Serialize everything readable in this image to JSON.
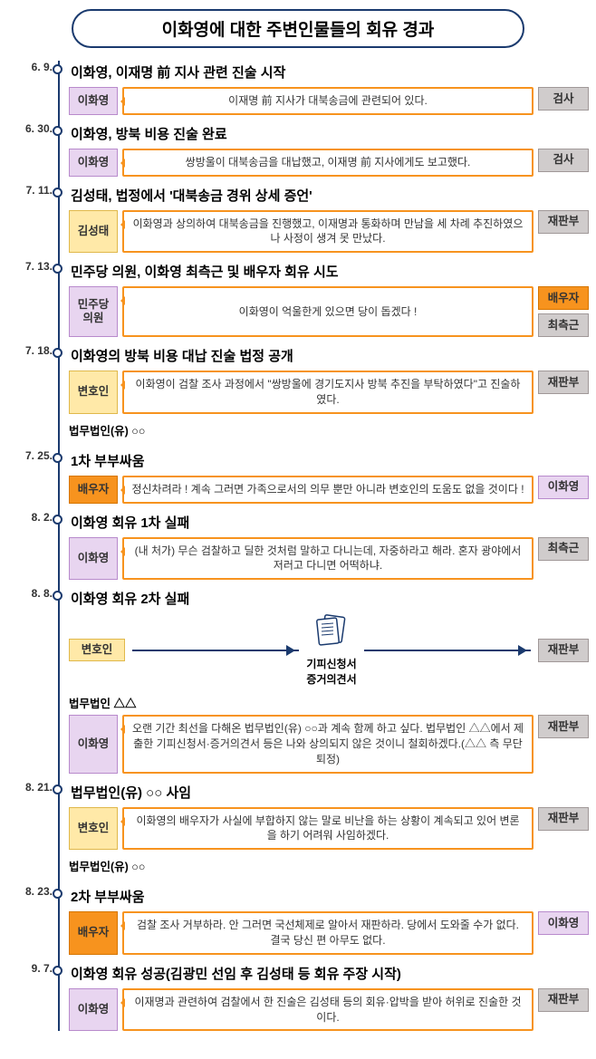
{
  "title": "이화영에 대한 주변인물들의 회유 경과",
  "colors": {
    "purple": "#e8d5f0",
    "yellow": "#ffe9a8",
    "orange": "#f7931e",
    "gray": "#d0cccc",
    "navy": "#1a3a6e"
  },
  "events": [
    {
      "date": "6. 9.",
      "head": "이화영, 이재명 前 지사 관련 진술 시작",
      "bubbles": [
        {
          "speaker": "이화영",
          "speakerStyle": "purple",
          "text": "이재명 前 지사가 대북송금에 관련되어 있다.",
          "side": [
            {
              "label": "검사",
              "style": "gray"
            }
          ]
        }
      ]
    },
    {
      "date": "6. 30.",
      "head": "이화영, 방북 비용 진술 완료",
      "bubbles": [
        {
          "speaker": "이화영",
          "speakerStyle": "purple",
          "text": "쌍방울이 대북송금을 대납했고, 이재명 前 지사에게도 보고했다.",
          "side": [
            {
              "label": "검사",
              "style": "gray"
            }
          ]
        }
      ]
    },
    {
      "date": "7. 11.",
      "head": "김성태, 법정에서 '대북송금 경위 상세 증언'",
      "bubbles": [
        {
          "speaker": "김성태",
          "speakerStyle": "yellow",
          "text": "이화영과 상의하여 대북송금을 진행했고, 이재명과 통화하며 만남을 세 차례 추진하였으나 사정이 생겨 못 만났다.",
          "side": [
            {
              "label": "재판부",
              "style": "gray"
            }
          ]
        }
      ]
    },
    {
      "date": "7. 13.",
      "head": "민주당 의원, 이화영 최측근 및 배우자 회유 시도",
      "bubbles": [
        {
          "speaker": "민주당\n의원",
          "speakerStyle": "purple",
          "text": "이화영이 억울한게 있으면 당이 돕겠다 !",
          "side": [
            {
              "label": "배우자",
              "style": "orange"
            },
            {
              "label": "최측근",
              "style": "gray"
            }
          ]
        }
      ]
    },
    {
      "date": "7. 18.",
      "head": "이화영의 방북 비용 대납 진술 법정 공개",
      "bubbles": [
        {
          "speaker": "변호인",
          "speakerStyle": "yellow",
          "text": "이화영이 검찰 조사 과정에서 \"쌍방울에 경기도지사 방북 추진을 부탁하였다\"고 진술하였다.",
          "side": [
            {
              "label": "재판부",
              "style": "gray"
            }
          ]
        }
      ],
      "sub": "법무법인(유) ○○"
    },
    {
      "date": "7. 25.",
      "head": "1차 부부싸움",
      "bubbles": [
        {
          "speaker": "배우자",
          "speakerStyle": "orange",
          "text": "정신차려라 ! 계속 그러면 가족으로서의 의무 뿐만 아니라 변호인의 도움도 없을 것이다 !",
          "side": [
            {
              "label": "이화영",
              "style": "purple"
            }
          ]
        }
      ]
    },
    {
      "date": "8. 2.",
      "head": "이화영 회유 1차 실패",
      "bubbles": [
        {
          "speaker": "이화영",
          "speakerStyle": "purple",
          "text": "(내 처가) 무슨 검찰하고 딜한 것처럼 말하고 다니는데, 자중하라고 해라. 혼자 광야에서 저러고 다니면 어떡하냐.",
          "side": [
            {
              "label": "최측근",
              "style": "gray"
            }
          ]
        }
      ]
    },
    {
      "date": "8. 8.",
      "head": "이화영 회유 2차 실패",
      "doc": {
        "leftLabel": "변호인",
        "leftStyle": "yellow",
        "leftSub": "법무법인 △△",
        "docLabel": "기피신청서\n증거의견서",
        "side": [
          {
            "label": "재판부",
            "style": "gray"
          }
        ]
      },
      "bubbles": [
        {
          "speaker": "이화영",
          "speakerStyle": "purple",
          "text": "오랜 기간 최선을 다해온 법무법인(유) ○○과 계속 함께 하고 싶다. 법무법인 △△에서 제출한 기피신청서·증거의견서 등은 나와 상의되지 않은 것이니 철회하겠다.(△△ 측 무단 퇴정)",
          "side": [
            {
              "label": "재판부",
              "style": "gray"
            }
          ]
        }
      ]
    },
    {
      "date": "8. 21.",
      "head": "법무법인(유) ○○ 사임",
      "bubbles": [
        {
          "speaker": "변호인",
          "speakerStyle": "yellow",
          "text": "이화영의 배우자가 사실에 부합하지 않는 말로 비난을 하는 상황이 계속되고 있어 변론을 하기 어려워 사임하겠다.",
          "side": [
            {
              "label": "재판부",
              "style": "gray"
            }
          ]
        }
      ],
      "sub": "법무법인(유) ○○"
    },
    {
      "date": "8. 23.",
      "head": "2차 부부싸움",
      "bubbles": [
        {
          "speaker": "배우자",
          "speakerStyle": "orange",
          "text": "검찰 조사 거부하라. 안 그러면 국선체제로 알아서 재판하라. 당에서 도와줄 수가 없다. 결국 당신 편 아무도 없다.",
          "side": [
            {
              "label": "이화영",
              "style": "purple"
            }
          ]
        }
      ]
    },
    {
      "date": "9. 7.",
      "head": "이화영 회유 성공(김광민 선임 후 김성태 등 회유 주장 시작)",
      "bubbles": [
        {
          "speaker": "이화영",
          "speakerStyle": "purple",
          "text": "이재명과 관련하여 검찰에서 한 진술은 김성태 등의 회유·압박을 받아 허위로 진술한 것이다.",
          "side": [
            {
              "label": "재판부",
              "style": "gray"
            }
          ]
        }
      ]
    }
  ]
}
